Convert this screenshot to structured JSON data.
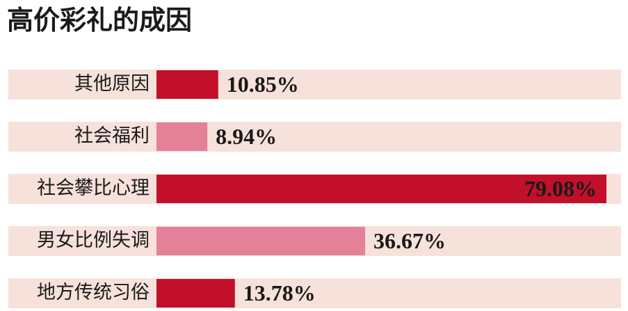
{
  "chart_data": {
    "type": "hbar",
    "title": "高价彩礼的成因",
    "categories": [
      "其他原因",
      "社会福利",
      "社会攀比心理",
      "男女比例失调",
      "地方传统习俗"
    ],
    "values": [
      10.85,
      8.94,
      79.08,
      36.67,
      13.78
    ],
    "value_labels": [
      "10.85%",
      "8.94%",
      "79.08%",
      "36.67%",
      "13.78%"
    ],
    "colors": [
      "#c2102a",
      "#e48098",
      "#c2102a",
      "#e48098",
      "#c2102a"
    ],
    "band_color": "#f6e2da"
  }
}
